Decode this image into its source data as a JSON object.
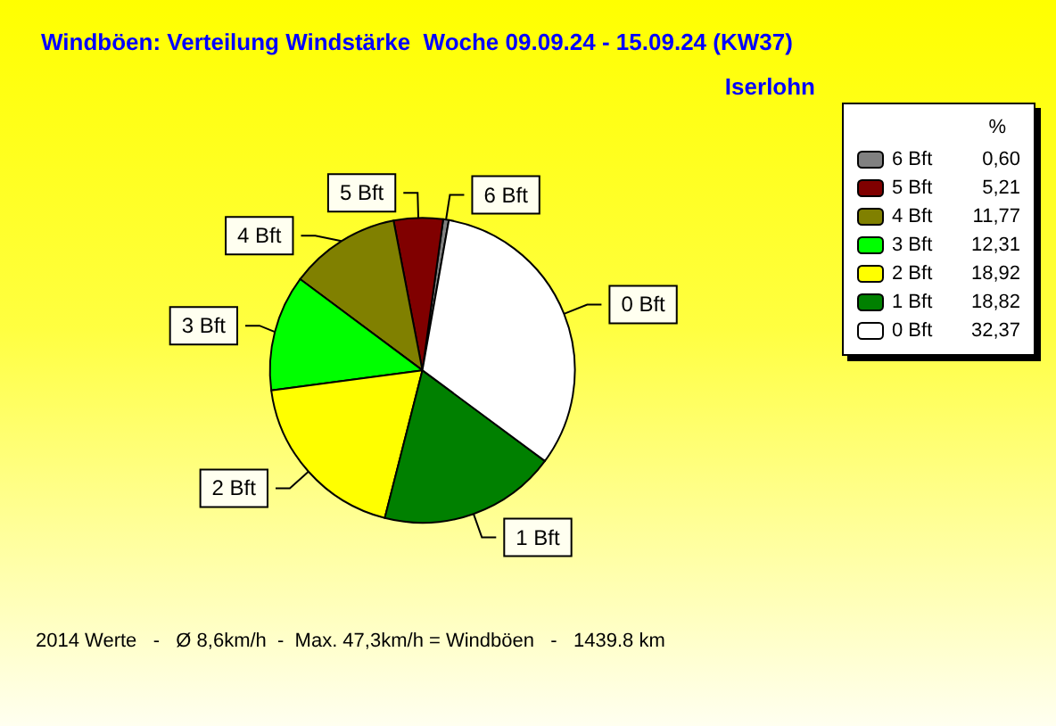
{
  "chart_data": {
    "type": "pie",
    "title": "Windböen: Verteilung Windstärke  Woche 09.09.24 - 15.09.24 (KW37)",
    "subtitle": "Iserlohn",
    "legend_title": "%",
    "categories": [
      "6 Bft",
      "5 Bft",
      "4 Bft",
      "3 Bft",
      "2 Bft",
      "1 Bft",
      "0 Bft"
    ],
    "values": [
      0.6,
      5.21,
      11.77,
      12.31,
      18.92,
      18.82,
      32.37
    ],
    "value_labels": [
      "0,60",
      "5,21",
      "11,77",
      "12,31",
      "18,92",
      "18,82",
      "32,37"
    ],
    "colors": [
      "#808080",
      "#800000",
      "#808000",
      "#00ff00",
      "#ffff00",
      "#008000",
      "#ffffff"
    ],
    "legend": "top right",
    "annotations": [
      "2014 Werte   -   Ø 8,6km/h  -  Max. 47,3km/h = Windböen   -   1439.8 km"
    ]
  }
}
